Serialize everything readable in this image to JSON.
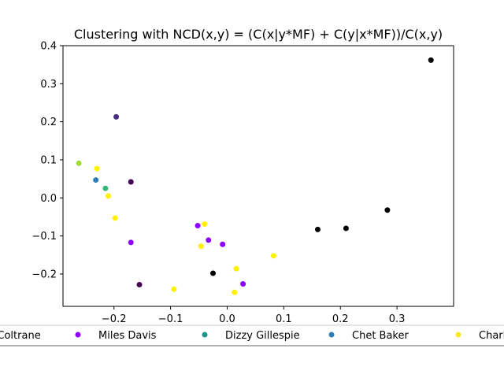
{
  "chart_data": {
    "type": "scatter",
    "title": "Clustering with NCD(x,y) = (C(x|y*MF) + C(y|x*MF))/C(x,y)",
    "xlabel": "",
    "ylabel": "",
    "xlim": [
      -0.29,
      0.4
    ],
    "ylim": [
      -0.285,
      0.4
    ],
    "x_ticks": [
      -0.2,
      -0.1,
      0.0,
      0.1,
      0.2,
      0.3
    ],
    "x_tick_labels": [
      "−0.2",
      "−0.1",
      "0.0",
      "0.1",
      "0.2",
      "0.3"
    ],
    "y_ticks": [
      -0.2,
      -0.1,
      0.0,
      0.1,
      0.2,
      0.3,
      0.4
    ],
    "y_tick_labels": [
      "−0.2",
      "−0.1",
      "0.0",
      "0.1",
      "0.2",
      "0.3",
      "0.4"
    ],
    "grid": false,
    "legend": {
      "placement": "bottom, outside plot (clipped at both edges)",
      "entries": [
        {
          "label": "John Coltrane",
          "color": "#440154"
        },
        {
          "label": "Miles Davis",
          "color": "#8b00ff"
        },
        {
          "label": "Dizzy Gillespie",
          "color": "#21918c"
        },
        {
          "label": "Chet Baker",
          "color": "#2c7fb8"
        },
        {
          "label": "Charlie Parker",
          "color": "#fde725"
        }
      ]
    },
    "series": [
      {
        "color": "#000000",
        "points": [
          [
            0.36,
            0.362
          ],
          [
            0.283,
            -0.032
          ],
          [
            0.21,
            -0.08
          ],
          [
            0.16,
            -0.083
          ],
          [
            -0.025,
            -0.198
          ]
        ]
      },
      {
        "color": "#440154",
        "points": [
          [
            -0.17,
            0.042
          ],
          [
            -0.155,
            -0.228
          ]
        ]
      },
      {
        "color": "#472d7b",
        "points": [
          [
            -0.196,
            0.213
          ]
        ]
      },
      {
        "color": "#8b00ff",
        "points": [
          [
            -0.17,
            -0.117
          ],
          [
            -0.052,
            -0.073
          ],
          [
            -0.033,
            -0.111
          ],
          [
            -0.008,
            -0.122
          ],
          [
            0.028,
            -0.226
          ]
        ]
      },
      {
        "color": "#2c7fb8",
        "points": [
          [
            -0.232,
            0.047
          ]
        ]
      },
      {
        "color": "#35b779",
        "points": [
          [
            -0.215,
            0.025
          ]
        ]
      },
      {
        "color": "#a0da39",
        "points": [
          [
            -0.262,
            0.091
          ]
        ]
      },
      {
        "color": "#fff200",
        "points": [
          [
            -0.23,
            0.077
          ],
          [
            -0.21,
            0.005
          ],
          [
            -0.198,
            -0.053
          ],
          [
            -0.04,
            -0.069
          ],
          [
            -0.046,
            -0.127
          ],
          [
            0.082,
            -0.152
          ],
          [
            0.016,
            -0.186
          ],
          [
            -0.094,
            -0.24
          ],
          [
            0.013,
            -0.248
          ]
        ]
      }
    ]
  }
}
